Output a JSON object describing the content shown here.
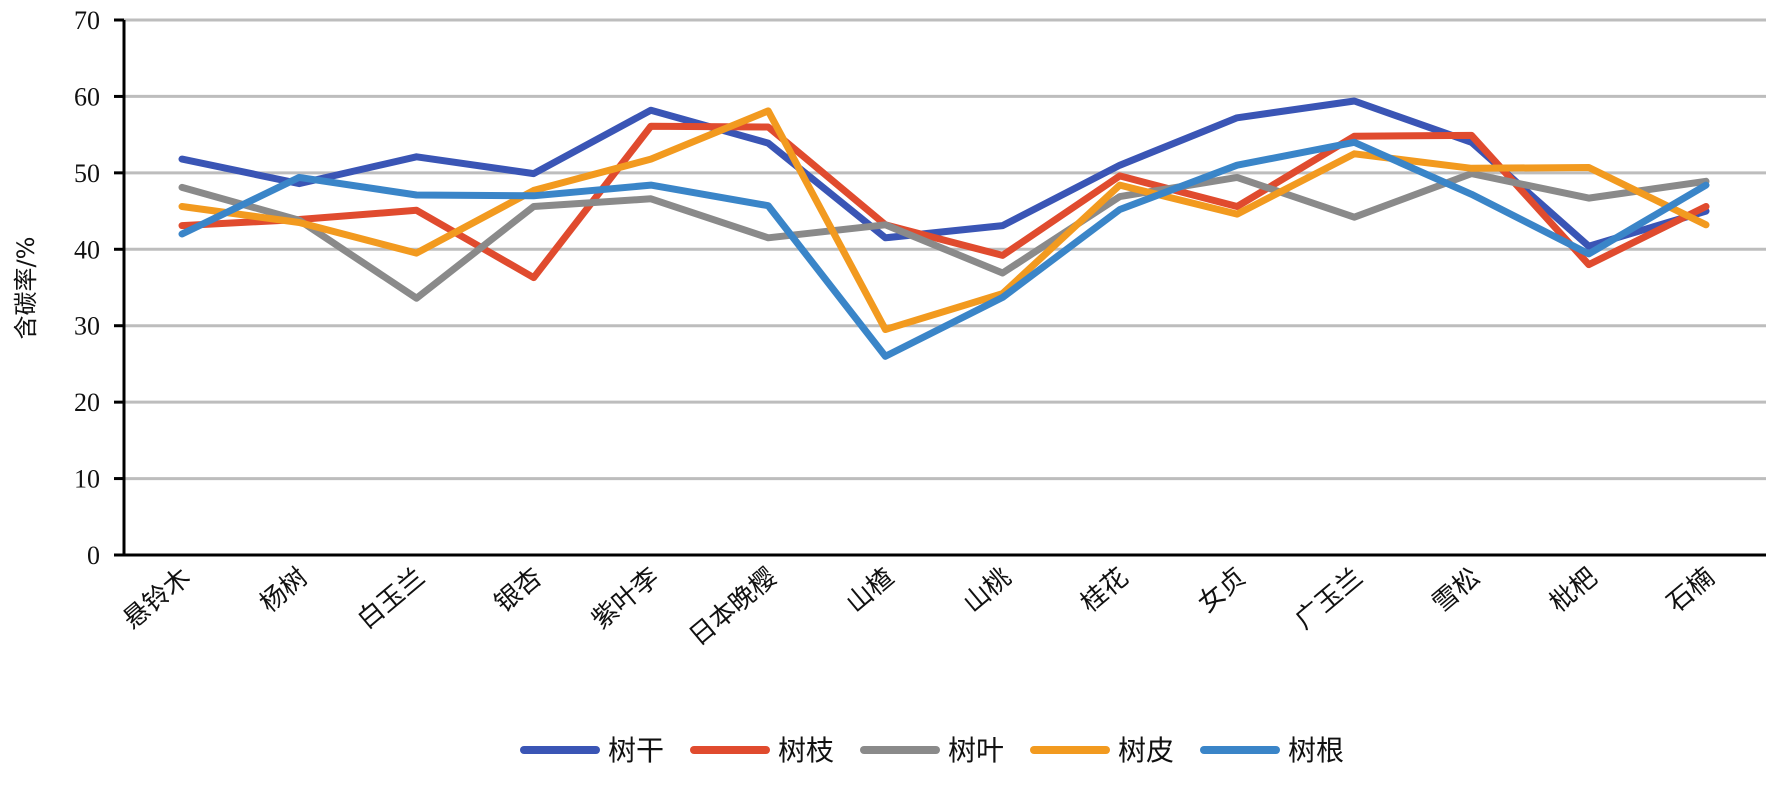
{
  "chart_data": {
    "type": "line",
    "title": "",
    "xlabel": "",
    "ylabel": "含碳率/%",
    "ylim": [
      0,
      70
    ],
    "yticks": [
      0,
      10,
      20,
      30,
      40,
      50,
      60,
      70
    ],
    "grid": true,
    "legend_position": "bottom",
    "categories": [
      "悬铃木",
      "杨树",
      "白玉兰",
      "银杏",
      "紫叶李",
      "日本晚樱",
      "山楂",
      "山桃",
      "桂花",
      "女贞",
      "广玉兰",
      "雪松",
      "枇杷",
      "石楠"
    ],
    "series": [
      {
        "name": "树干",
        "color": "#3A55B5",
        "values": [
          51.8,
          48.6,
          52.1,
          49.9,
          58.2,
          53.9,
          41.5,
          43.1,
          51.0,
          57.2,
          59.4,
          54.0,
          40.4,
          45.0
        ]
      },
      {
        "name": "树枝",
        "color": "#E04B2E",
        "values": [
          43.1,
          43.9,
          45.1,
          36.3,
          56.1,
          56.0,
          43.2,
          39.2,
          49.6,
          45.6,
          54.8,
          54.9,
          38.0,
          45.6
        ]
      },
      {
        "name": "树叶",
        "color": "#8A8A8A",
        "values": [
          48.1,
          43.8,
          33.6,
          45.6,
          46.6,
          41.5,
          43.2,
          36.9,
          46.9,
          49.4,
          44.2,
          49.9,
          46.7,
          48.9
        ]
      },
      {
        "name": "树皮",
        "color": "#F29A1F",
        "values": [
          45.6,
          43.5,
          39.5,
          47.7,
          51.8,
          58.1,
          29.5,
          34.2,
          48.4,
          44.6,
          52.5,
          50.6,
          50.7,
          43.2
        ]
      },
      {
        "name": "树根",
        "color": "#3A85C8",
        "values": [
          42.0,
          49.4,
          47.1,
          47.0,
          48.4,
          45.7,
          26.0,
          33.7,
          45.2,
          51.0,
          54.0,
          47.2,
          39.4,
          48.4
        ]
      }
    ]
  }
}
